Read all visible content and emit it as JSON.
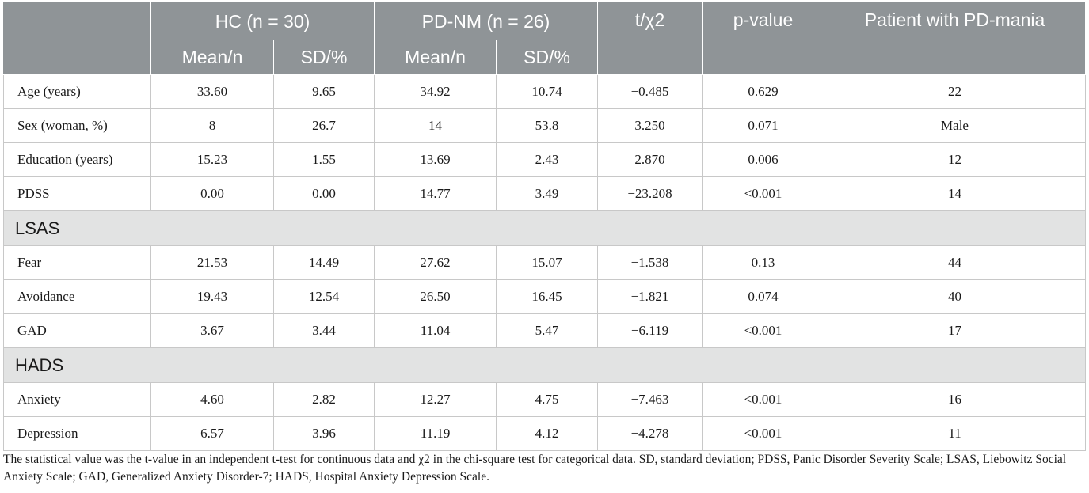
{
  "header": {
    "hc": "HC (n = 30)",
    "pdnm": "PD-NM (n = 26)",
    "stat": "t/χ2",
    "pvalue": "p-value",
    "patient": "Patient with PD-mania",
    "hc_mean": "Mean/n",
    "hc_sd": "SD/%",
    "pdnm_mean": "Mean/n",
    "pdnm_sd": "SD/%"
  },
  "rows": [
    {
      "label": "Age (years)",
      "hc_mean": "33.60",
      "hc_sd": "9.65",
      "pdnm_mean": "34.92",
      "pdnm_sd": "10.74",
      "stat": "−0.485",
      "p": "0.629",
      "patient": "22"
    },
    {
      "label": "Sex (woman, %)",
      "hc_mean": "8",
      "hc_sd": "26.7",
      "pdnm_mean": "14",
      "pdnm_sd": "53.8",
      "stat": "3.250",
      "p": "0.071",
      "patient": "Male"
    },
    {
      "label": "Education (years)",
      "hc_mean": "15.23",
      "hc_sd": "1.55",
      "pdnm_mean": "13.69",
      "pdnm_sd": "2.43",
      "stat": "2.870",
      "p": "0.006",
      "patient": "12"
    },
    {
      "label": "PDSS",
      "hc_mean": "0.00",
      "hc_sd": "0.00",
      "pdnm_mean": "14.77",
      "pdnm_sd": "3.49",
      "stat": "−23.208",
      "p": "<0.001",
      "patient": "14"
    }
  ],
  "sections": {
    "lsas": "LSAS",
    "hads": "HADS"
  },
  "lsas_rows": [
    {
      "label": "Fear",
      "hc_mean": "21.53",
      "hc_sd": "14.49",
      "pdnm_mean": "27.62",
      "pdnm_sd": "15.07",
      "stat": "−1.538",
      "p": "0.13",
      "patient": "44"
    },
    {
      "label": "Avoidance",
      "hc_mean": "19.43",
      "hc_sd": "12.54",
      "pdnm_mean": "26.50",
      "pdnm_sd": "16.45",
      "stat": "−1.821",
      "p": "0.074",
      "patient": "40"
    },
    {
      "label": "GAD",
      "hc_mean": "3.67",
      "hc_sd": "3.44",
      "pdnm_mean": "11.04",
      "pdnm_sd": "5.47",
      "stat": "−6.119",
      "p": "<0.001",
      "patient": "17"
    }
  ],
  "hads_rows": [
    {
      "label": "Anxiety",
      "hc_mean": "4.60",
      "hc_sd": "2.82",
      "pdnm_mean": "12.27",
      "pdnm_sd": "4.75",
      "stat": "−7.463",
      "p": "<0.001",
      "patient": "16"
    },
    {
      "label": "Depression",
      "hc_mean": "6.57",
      "hc_sd": "3.96",
      "pdnm_mean": "11.19",
      "pdnm_sd": "4.12",
      "stat": "−4.278",
      "p": "<0.001",
      "patient": "11"
    }
  ],
  "footnote": "The statistical value was the t-value in an independent t-test for continuous data and χ2 in the chi-square test for categorical data. SD, standard deviation; PDSS, Panic Disorder Severity Scale; LSAS, Liebowitz Social Anxiety Scale; GAD, Generalized Anxiety Disorder-7; HADS, Hospital Anxiety Depression Scale.",
  "colors": {
    "header_bg": "#8f9497",
    "section_bg": "#e2e3e3"
  }
}
